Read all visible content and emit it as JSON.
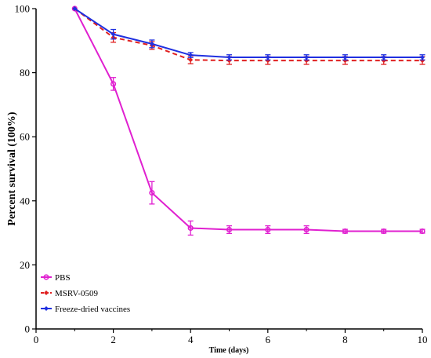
{
  "chart_data": {
    "type": "line",
    "xlabel": "Time (days)",
    "ylabel": "Percent survival (100%)",
    "xlim": [
      0,
      10
    ],
    "ylim": [
      0,
      100
    ],
    "xticks": [
      0,
      2,
      4,
      6,
      8,
      10
    ],
    "yticks": [
      0,
      20,
      40,
      60,
      80,
      100
    ],
    "grid": false,
    "legend_position": "bottom-left",
    "x": [
      1,
      2,
      3,
      4,
      5,
      6,
      7,
      8,
      9,
      10
    ],
    "series": [
      {
        "name": "PBS",
        "color": "#e020d0",
        "line_style": "solid",
        "marker": "circle",
        "values": [
          100,
          76.5,
          42.5,
          31.5,
          31,
          31,
          31,
          30.5,
          30.5,
          30.5
        ],
        "errors": [
          0,
          2,
          3.5,
          2.2,
          1.2,
          1.2,
          1.2,
          0.6,
          0.6,
          0.6
        ]
      },
      {
        "name": "MSRV-0509",
        "color": "#e02020",
        "line_style": "dashed",
        "marker": "diamond",
        "values": [
          100,
          91,
          88.5,
          84,
          83.8,
          83.8,
          83.8,
          83.8,
          83.8,
          83.8
        ],
        "errors": [
          0,
          1.5,
          1.2,
          1.2,
          1.2,
          1.2,
          1.2,
          1.2,
          1.2,
          1.2
        ]
      },
      {
        "name": "Freeze-dried vaccines",
        "color": "#2030e0",
        "line_style": "solid",
        "marker": "diamond",
        "values": [
          100,
          92,
          89,
          85.5,
          84.8,
          84.8,
          84.8,
          84.8,
          84.8,
          84.8
        ],
        "errors": [
          0,
          1.5,
          1.2,
          0.8,
          0.8,
          0.8,
          0.8,
          0.8,
          0.8,
          0.8
        ]
      }
    ]
  }
}
